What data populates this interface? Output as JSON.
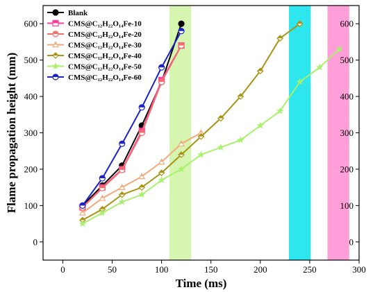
{
  "chart_data": {
    "type": "line",
    "xlabel": "Time (ms)",
    "ylabel": "Flame propagation height (mm)",
    "xlim": [
      -20,
      300
    ],
    "ylim": [
      -50,
      650
    ],
    "x_ticks": [
      0,
      50,
      100,
      150,
      200,
      250,
      300
    ],
    "y_ticks": [
      0,
      100,
      200,
      300,
      400,
      500,
      600
    ],
    "y_ticks_right": [
      0,
      100,
      200,
      300,
      400,
      500,
      600
    ],
    "legend_position": "top-left",
    "grid": false,
    "shaded_bands": [
      {
        "x_start": 108,
        "x_end": 130,
        "color": "#d6f5b0"
      },
      {
        "x_start": 229,
        "x_end": 251,
        "color": "#2ee6ee"
      },
      {
        "x_start": 268,
        "x_end": 290,
        "color": "#ff9ed8"
      }
    ],
    "series": [
      {
        "name": "Blank",
        "color": "#000000",
        "marker": "circle-filled",
        "x": [
          20,
          40,
          60,
          80,
          100,
          120
        ],
        "y": [
          100,
          155,
          210,
          320,
          440,
          600
        ]
      },
      {
        "name": "CMS@C₁₂H₂₂O₁₄Fe-10",
        "color": "#ff3f9a",
        "marker": "square-half",
        "x": [
          20,
          40,
          60,
          80,
          100,
          120
        ],
        "y": [
          95,
          150,
          200,
          305,
          445,
          540
        ]
      },
      {
        "name": "CMS@C₁₂H₂₂O₁₄Fe-20",
        "color": "#f26d6d",
        "marker": "circle-half",
        "x": [
          20,
          40,
          60,
          80,
          100,
          120
        ],
        "y": [
          95,
          148,
          198,
          300,
          440,
          540
        ]
      },
      {
        "name": "CMS@C₁₂H₂₂O₁₄Fe-30",
        "color": "#f5a87a",
        "marker": "triangle-half",
        "x": [
          20,
          40,
          60,
          80,
          100,
          120,
          140
        ],
        "y": [
          80,
          120,
          150,
          180,
          220,
          270,
          300
        ]
      },
      {
        "name": "CMS@C₁₂H₂₂O₁₄Fe-40",
        "color": "#a89314",
        "marker": "diamond-half",
        "x": [
          20,
          40,
          60,
          80,
          100,
          120,
          140,
          160,
          180,
          200,
          220,
          240
        ],
        "y": [
          60,
          90,
          130,
          150,
          190,
          240,
          290,
          340,
          400,
          470,
          560,
          600
        ]
      },
      {
        "name": "CMS@C₁₂H₂₂O₁₄Fe-50",
        "color": "#a8f06e",
        "marker": "star-half",
        "x": [
          20,
          40,
          60,
          80,
          100,
          120,
          140,
          160,
          180,
          200,
          220,
          240,
          260,
          280
        ],
        "y": [
          50,
          80,
          110,
          130,
          170,
          200,
          240,
          260,
          280,
          320,
          360,
          440,
          480,
          530
        ]
      },
      {
        "name": "CMS@C₁₂H₂₂O₁₄Fe-60",
        "color": "#1a22c8",
        "marker": "circle-half",
        "x": [
          20,
          40,
          60,
          80,
          100,
          120
        ],
        "y": [
          100,
          175,
          270,
          370,
          480,
          580
        ]
      }
    ]
  }
}
